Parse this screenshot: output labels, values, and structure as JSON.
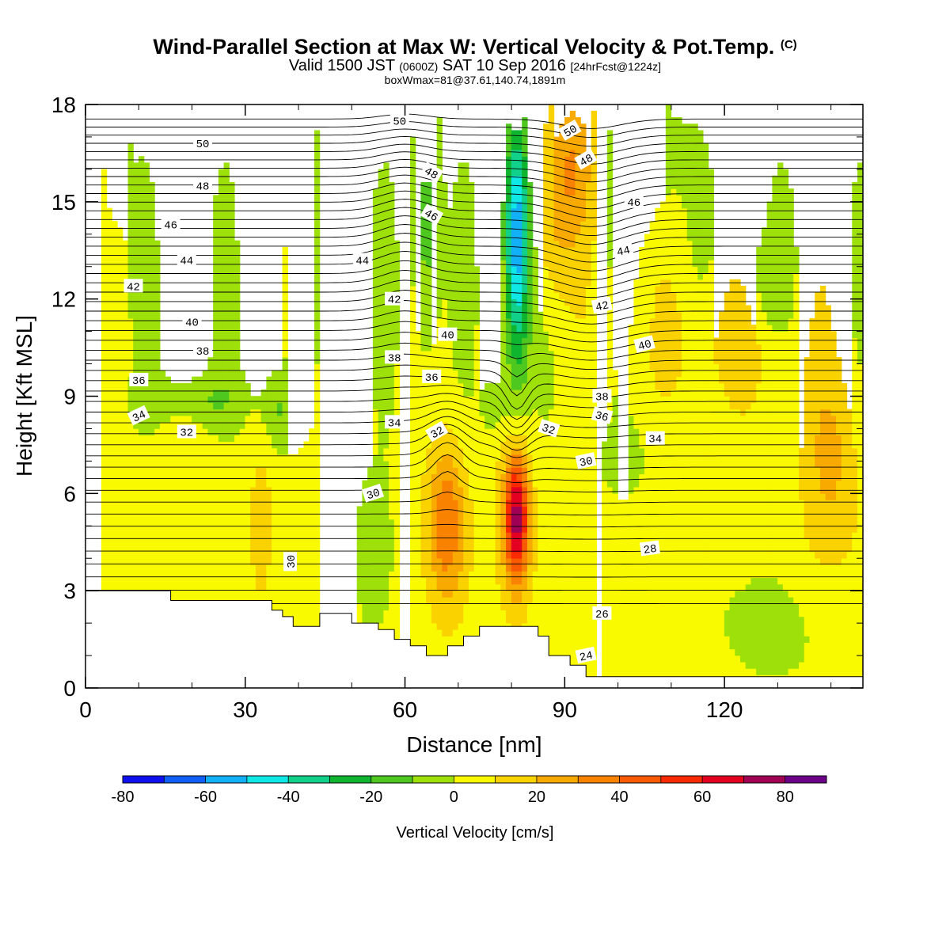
{
  "title": {
    "main": "Wind-Parallel Section at Max W: Vertical Velocity & Pot.Temp.",
    "copyright": "(C)",
    "valid_a": "Valid 1500 JST",
    "valid_utc": "(0600Z)",
    "valid_b": "SAT 10 Sep 2016",
    "forecast": "[24hrFcst@1224z]",
    "box": "boxWmax=81@37.61,140.74,1891m"
  },
  "chart_data": {
    "type": "heatmap",
    "xlabel": "Distance [nm]",
    "ylabel": "Height [Kft MSL]",
    "xlim": [
      0,
      146
    ],
    "ylim": [
      0,
      18
    ],
    "x_ticks": [
      0,
      30,
      60,
      90,
      120
    ],
    "y_ticks": [
      0,
      3,
      6,
      9,
      12,
      15,
      18
    ],
    "colorbar": {
      "label": "Vertical Velocity [cm/s]",
      "range": [
        -80,
        90
      ],
      "step": 10,
      "tick_values": [
        -80,
        -60,
        -40,
        -20,
        0,
        20,
        40,
        60,
        80
      ],
      "colors": [
        "#0f10ef",
        "#0f5ef5",
        "#12b0f7",
        "#10e8e8",
        "#10d08a",
        "#0fb42f",
        "#4ec81f",
        "#9de00a",
        "#f9f900",
        "#f9d200",
        "#f9aa00",
        "#f98300",
        "#f95a00",
        "#f92a00",
        "#e40021",
        "#a00054",
        "#6c0088"
      ]
    },
    "theta_contours": {
      "units": "K-offset labels",
      "labels": [
        {
          "x": 38.5,
          "y": 3.9,
          "v": "30",
          "rot": -90
        },
        {
          "x": 54,
          "y": 6.0,
          "v": "30",
          "rot": -18
        },
        {
          "x": 94,
          "y": 7.0,
          "v": "30",
          "rot": -12
        },
        {
          "x": 106,
          "y": 4.3,
          "v": "28",
          "rot": -8
        },
        {
          "x": 97,
          "y": 2.3,
          "v": "26",
          "rot": 0
        },
        {
          "x": 94,
          "y": 1.0,
          "v": "24",
          "rot": -12
        },
        {
          "x": 19,
          "y": 7.9,
          "v": "32",
          "rot": 0
        },
        {
          "x": 66,
          "y": 7.9,
          "v": "32",
          "rot": -30
        },
        {
          "x": 87,
          "y": 8.0,
          "v": "32",
          "rot": 18
        },
        {
          "x": 10,
          "y": 8.4,
          "v": "34",
          "rot": -25
        },
        {
          "x": 58,
          "y": 8.2,
          "v": "34",
          "rot": 0
        },
        {
          "x": 107,
          "y": 7.7,
          "v": "34",
          "rot": 0
        },
        {
          "x": 10,
          "y": 9.5,
          "v": "36",
          "rot": 0
        },
        {
          "x": 65,
          "y": 9.6,
          "v": "36",
          "rot": 0
        },
        {
          "x": 97,
          "y": 8.4,
          "v": "36",
          "rot": 15
        },
        {
          "x": 22,
          "y": 10.4,
          "v": "38",
          "rot": 0
        },
        {
          "x": 58,
          "y": 10.2,
          "v": "38",
          "rot": 0
        },
        {
          "x": 97,
          "y": 9.0,
          "v": "38",
          "rot": 0
        },
        {
          "x": 20,
          "y": 11.3,
          "v": "40",
          "rot": 0
        },
        {
          "x": 68,
          "y": 10.9,
          "v": "40",
          "rot": 0
        },
        {
          "x": 105,
          "y": 10.6,
          "v": "40",
          "rot": -15
        },
        {
          "x": 9,
          "y": 12.4,
          "v": "42",
          "rot": 0
        },
        {
          "x": 58,
          "y": 12.0,
          "v": "42",
          "rot": 0
        },
        {
          "x": 97,
          "y": 11.8,
          "v": "42",
          "rot": -12
        },
        {
          "x": 19,
          "y": 13.2,
          "v": "44",
          "rot": 0
        },
        {
          "x": 52,
          "y": 13.2,
          "v": "44",
          "rot": 0
        },
        {
          "x": 101,
          "y": 13.5,
          "v": "44",
          "rot": -12
        },
        {
          "x": 16,
          "y": 14.3,
          "v": "46",
          "rot": 0
        },
        {
          "x": 65,
          "y": 14.6,
          "v": "46",
          "rot": 30
        },
        {
          "x": 103,
          "y": 15.0,
          "v": "46",
          "rot": 0
        },
        {
          "x": 22,
          "y": 15.5,
          "v": "48",
          "rot": 0
        },
        {
          "x": 65,
          "y": 15.9,
          "v": "48",
          "rot": 30
        },
        {
          "x": 94,
          "y": 16.3,
          "v": "48",
          "rot": -30
        },
        {
          "x": 22,
          "y": 16.8,
          "v": "50",
          "rot": 0
        },
        {
          "x": 59,
          "y": 17.5,
          "v": "50",
          "rot": 0
        },
        {
          "x": 91,
          "y": 17.2,
          "v": "50",
          "rot": -30
        }
      ]
    }
  }
}
